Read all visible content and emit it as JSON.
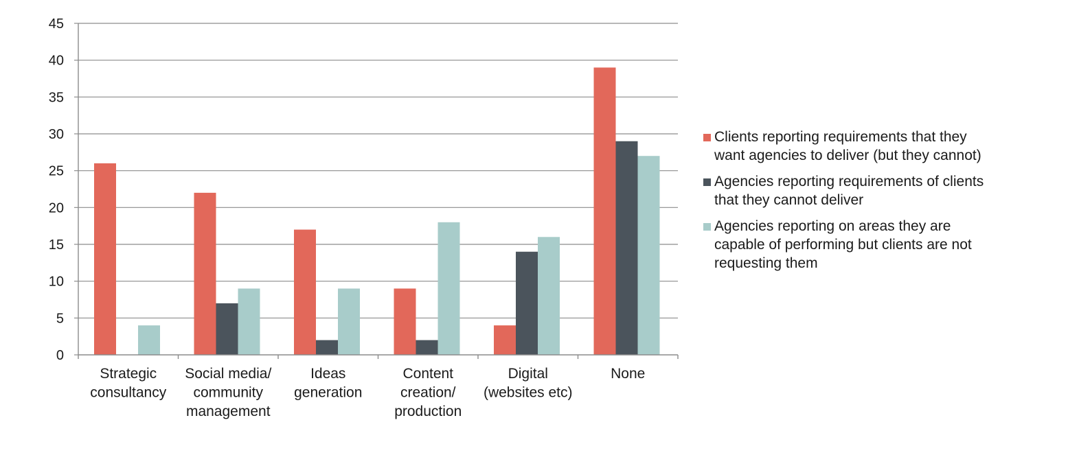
{
  "chart_data": {
    "type": "bar",
    "categories": [
      [
        "Strategic",
        "consultancy"
      ],
      [
        "Social media/",
        "community",
        "management"
      ],
      [
        "Ideas",
        "generation"
      ],
      [
        "Content",
        "creation/",
        "production"
      ],
      [
        "Digital",
        "(websites etc)"
      ],
      [
        "None"
      ]
    ],
    "series": [
      {
        "name": "Clients reporting requirements that they want agencies to deliver (but they cannot)",
        "name_lines": [
          "Clients reporting requirements that they",
          "want agencies to deliver (but they cannot)"
        ],
        "color": "#E2685A",
        "values": [
          26,
          22,
          17,
          9,
          4,
          39
        ]
      },
      {
        "name": "Agencies reporting requirements of clients that they cannot deliver",
        "name_lines": [
          "Agencies reporting requirements of clients",
          "that they cannot deliver"
        ],
        "color": "#4B545C",
        "values": [
          0,
          7,
          2,
          2,
          14,
          29
        ]
      },
      {
        "name": "Agencies reporting on areas they are capable of performing but clients are not requesting them",
        "name_lines": [
          "Agencies reporting on areas they are",
          "capable of performing but clients are not",
          "requesting them"
        ],
        "color": "#A8CCCA",
        "values": [
          4,
          9,
          9,
          18,
          16,
          27
        ]
      }
    ],
    "yticks": [
      0,
      5,
      10,
      15,
      20,
      25,
      30,
      35,
      40,
      45
    ],
    "ylim": [
      0,
      45
    ],
    "grid": true,
    "legend_position": "right"
  }
}
